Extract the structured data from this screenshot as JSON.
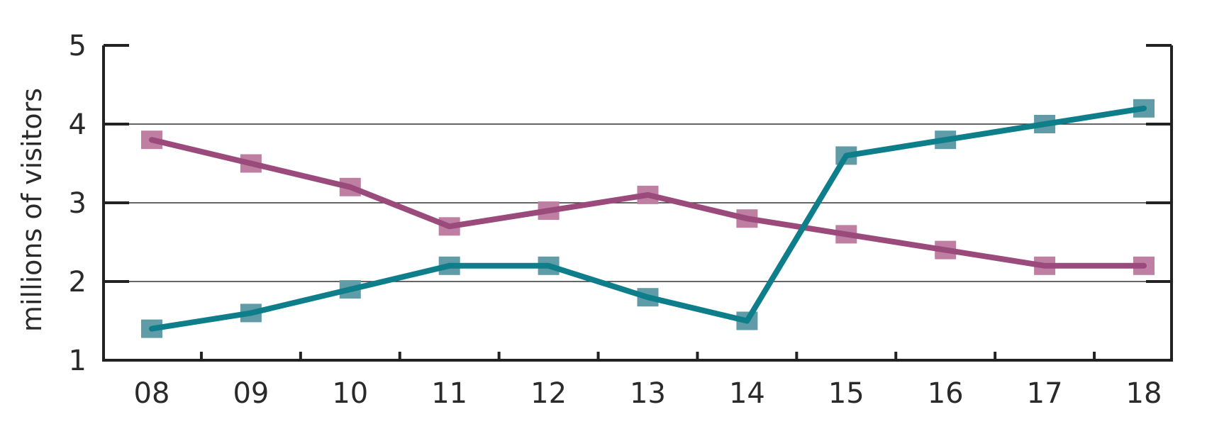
{
  "chart_data": {
    "type": "line",
    "ylabel": "millions of visitors",
    "xlabel": "",
    "categories": [
      "08",
      "09",
      "10",
      "11",
      "12",
      "13",
      "14",
      "15",
      "16",
      "17",
      "18"
    ],
    "ylim": [
      1,
      5
    ],
    "yticks": [
      "1",
      "2",
      "3",
      "4",
      "5"
    ],
    "grid": true,
    "legend": "none",
    "series": [
      {
        "color": "#9b4a7c",
        "marker_color": "#bf7fa3",
        "values": [
          3.8,
          3.5,
          3.2,
          2.7,
          2.9,
          3.1,
          2.8,
          2.6,
          2.4,
          2.2,
          2.2
        ]
      },
      {
        "color": "#0e7f8a",
        "marker_color": "#5f9ca8",
        "values": [
          1.4,
          1.6,
          1.9,
          2.2,
          2.2,
          1.8,
          1.5,
          3.6,
          3.8,
          4.0,
          4.2
        ]
      }
    ]
  }
}
